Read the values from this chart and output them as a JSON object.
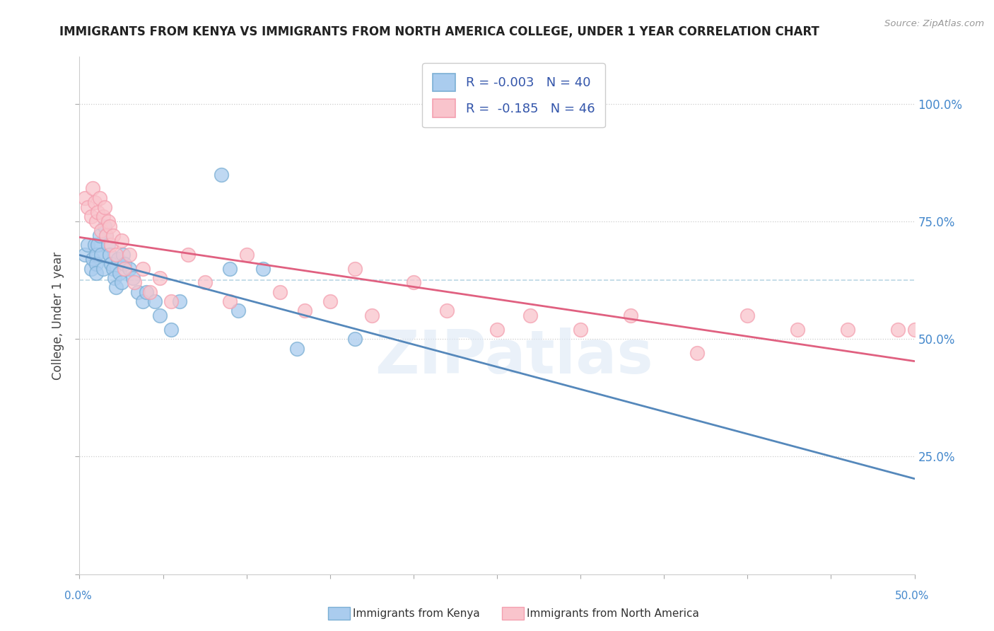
{
  "title": "IMMIGRANTS FROM KENYA VS IMMIGRANTS FROM NORTH AMERICA COLLEGE, UNDER 1 YEAR CORRELATION CHART",
  "source": "Source: ZipAtlas.com",
  "ylabel": "College, Under 1 year",
  "xlim": [
    0.0,
    0.5
  ],
  "ylim": [
    0.0,
    1.1
  ],
  "yticks": [
    0.0,
    0.25,
    0.5,
    0.75,
    1.0
  ],
  "ytick_labels_right": [
    "",
    "25.0%",
    "50.0%",
    "75.0%",
    "100.0%"
  ],
  "blue_color": "#7bafd4",
  "pink_color": "#f4a0b0",
  "blue_fill": "#aaccee",
  "pink_fill": "#f9c4cc",
  "background_color": "#ffffff",
  "dashed_line_y": 0.625,
  "kenya_x": [
    0.003,
    0.005,
    0.007,
    0.008,
    0.009,
    0.01,
    0.01,
    0.01,
    0.011,
    0.012,
    0.013,
    0.014,
    0.015,
    0.016,
    0.017,
    0.018,
    0.019,
    0.02,
    0.021,
    0.022,
    0.023,
    0.024,
    0.025,
    0.026,
    0.027,
    0.03,
    0.032,
    0.035,
    0.038,
    0.04,
    0.045,
    0.048,
    0.055,
    0.06,
    0.085,
    0.09,
    0.095,
    0.11,
    0.13,
    0.165
  ],
  "kenya_y": [
    0.68,
    0.7,
    0.65,
    0.67,
    0.7,
    0.68,
    0.66,
    0.64,
    0.7,
    0.72,
    0.68,
    0.65,
    0.74,
    0.72,
    0.7,
    0.68,
    0.66,
    0.65,
    0.63,
    0.61,
    0.67,
    0.64,
    0.62,
    0.68,
    0.66,
    0.65,
    0.63,
    0.6,
    0.58,
    0.6,
    0.58,
    0.55,
    0.52,
    0.58,
    0.85,
    0.65,
    0.56,
    0.65,
    0.48,
    0.5
  ],
  "na_x": [
    0.003,
    0.005,
    0.007,
    0.008,
    0.009,
    0.01,
    0.011,
    0.012,
    0.013,
    0.014,
    0.015,
    0.016,
    0.017,
    0.018,
    0.019,
    0.02,
    0.022,
    0.025,
    0.027,
    0.03,
    0.033,
    0.038,
    0.042,
    0.048,
    0.055,
    0.065,
    0.075,
    0.09,
    0.1,
    0.12,
    0.135,
    0.15,
    0.165,
    0.175,
    0.2,
    0.22,
    0.25,
    0.27,
    0.3,
    0.33,
    0.37,
    0.4,
    0.43,
    0.46,
    0.49,
    0.5
  ],
  "na_y": [
    0.8,
    0.78,
    0.76,
    0.82,
    0.79,
    0.75,
    0.77,
    0.8,
    0.73,
    0.76,
    0.78,
    0.72,
    0.75,
    0.74,
    0.7,
    0.72,
    0.68,
    0.71,
    0.65,
    0.68,
    0.62,
    0.65,
    0.6,
    0.63,
    0.58,
    0.68,
    0.62,
    0.58,
    0.68,
    0.6,
    0.56,
    0.58,
    0.65,
    0.55,
    0.62,
    0.56,
    0.52,
    0.55,
    0.52,
    0.55,
    0.47,
    0.55,
    0.52,
    0.52,
    0.52,
    0.52
  ],
  "watermark": "ZIPatlas",
  "legend_r1": "R = -0.003",
  "legend_n1": "N = 40",
  "legend_r2": "R =  -0.185",
  "legend_n2": "N = 46"
}
